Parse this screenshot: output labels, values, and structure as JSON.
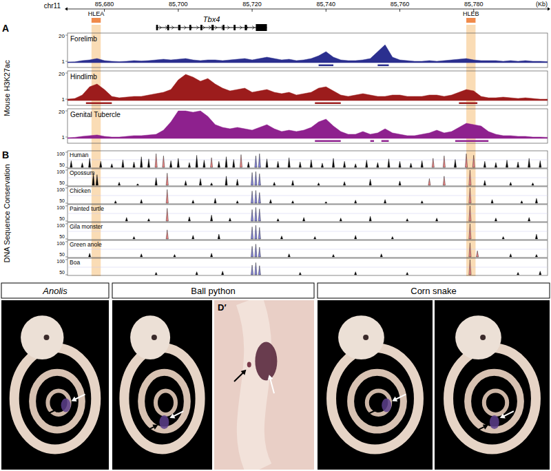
{
  "figure": {
    "ruler": {
      "label": "chr11",
      "unit": "(Kb)",
      "xlim": [
        85670,
        85800
      ],
      "xticks": [
        {
          "value": 85680,
          "label": "85,680"
        },
        {
          "value": 85700,
          "label": "85,700"
        },
        {
          "value": 85720,
          "label": "85,720"
        },
        {
          "value": 85740,
          "label": "85,740"
        },
        {
          "value": 85760,
          "label": "85,760"
        },
        {
          "value": 85780,
          "label": "85,780"
        }
      ]
    },
    "elements": [
      {
        "label": "HLEA",
        "start": 85676.5,
        "end": 85679
      },
      {
        "label": "HLEB",
        "start": 85778,
        "end": 85780.5
      }
    ],
    "gene": {
      "name": "Tbx4",
      "start": 85694,
      "end": 85724,
      "exons": [
        [
          85694,
          85694.5
        ],
        [
          85697,
          85697.5
        ],
        [
          85700,
          85700.6
        ],
        [
          85703,
          85703.5
        ],
        [
          85706,
          85706.5
        ],
        [
          85709,
          85709.6
        ],
        [
          85712,
          85712.5
        ],
        [
          85715,
          85715.5
        ],
        [
          85718,
          85718.6
        ],
        [
          85721,
          85724
        ]
      ]
    },
    "panel_a": {
      "label": "A",
      "title": "Mouse H3K27ac"
    },
    "panel_b": {
      "label": "B",
      "title": "DNA Sequence Conservation"
    },
    "photos": [
      {
        "title": "Anolis",
        "italic": true,
        "panel_labels": [
          null
        ]
      },
      {
        "title": "Ball python",
        "italic": false,
        "panel_labels": [
          null,
          "D′"
        ]
      },
      {
        "title": "Corn snake",
        "italic": false,
        "panel_labels": [
          null,
          null
        ]
      }
    ]
  },
  "chart_data": [
    {
      "type": "area",
      "title": "Forelimb",
      "color": "#2b2f8f",
      "xlim": [
        85670,
        85800
      ],
      "ylim": [
        0,
        20
      ],
      "yticks": [
        1,
        20
      ],
      "x": [
        85670,
        85672,
        85674,
        85676,
        85678,
        85680,
        85682,
        85684,
        85686,
        85688,
        85690,
        85692,
        85694,
        85696,
        85698,
        85700,
        85702,
        85704,
        85706,
        85708,
        85710,
        85712,
        85714,
        85716,
        85718,
        85720,
        85722,
        85724,
        85726,
        85728,
        85730,
        85732,
        85734,
        85736,
        85738,
        85740,
        85742,
        85744,
        85746,
        85748,
        85750,
        85752,
        85754,
        85756,
        85758,
        85760,
        85762,
        85764,
        85766,
        85768,
        85770,
        85772,
        85774,
        85776,
        85778,
        85780,
        85782,
        85784,
        85786,
        85788,
        85790,
        85792,
        85794,
        85796,
        85798,
        85800
      ],
      "values": [
        0.5,
        0.6,
        1.5,
        2,
        3,
        1.5,
        1,
        0.8,
        1,
        1.5,
        1.2,
        1.5,
        2,
        2.5,
        2,
        2.5,
        3,
        2,
        1.5,
        2,
        2,
        1.5,
        2,
        2.5,
        3,
        2,
        3,
        4,
        3,
        2,
        2.5,
        1.5,
        2,
        3,
        5,
        8,
        4,
        2,
        1.5,
        1.5,
        2,
        3,
        8,
        13,
        4,
        2,
        1.5,
        1,
        1,
        1.5,
        1,
        1.5,
        2,
        2.5,
        3,
        2,
        1.5,
        1.5,
        1.5,
        1,
        1.5,
        1,
        1.5,
        1,
        1,
        0.8
      ],
      "peaks": [
        [
          85738,
          85742
        ],
        [
          85754,
          85757
        ]
      ]
    },
    {
      "type": "area",
      "title": "Hindlimb",
      "color": "#9c1c1c",
      "xlim": [
        85670,
        85800
      ],
      "ylim": [
        0,
        20
      ],
      "yticks": [
        1,
        20
      ],
      "x": [
        85670,
        85672,
        85674,
        85676,
        85678,
        85680,
        85682,
        85684,
        85686,
        85688,
        85690,
        85692,
        85694,
        85696,
        85698,
        85700,
        85702,
        85704,
        85706,
        85708,
        85710,
        85712,
        85714,
        85716,
        85718,
        85720,
        85722,
        85724,
        85726,
        85728,
        85730,
        85732,
        85734,
        85736,
        85738,
        85740,
        85742,
        85744,
        85746,
        85748,
        85750,
        85752,
        85754,
        85756,
        85758,
        85760,
        85762,
        85764,
        85766,
        85768,
        85770,
        85772,
        85774,
        85776,
        85778,
        85780,
        85782,
        85784,
        85786,
        85788,
        85790,
        85792,
        85794,
        85796,
        85798,
        85800
      ],
      "values": [
        1,
        1.5,
        4,
        10,
        12,
        8,
        3,
        2,
        2.5,
        3,
        3,
        4,
        5,
        6,
        8,
        15,
        19,
        17,
        14,
        16,
        12,
        9,
        7,
        8,
        9,
        6,
        7,
        8,
        6,
        5,
        6,
        4,
        5,
        6,
        9,
        10,
        7,
        4,
        3,
        4,
        5,
        4,
        3,
        3,
        4,
        4,
        3,
        3,
        3,
        4,
        4,
        3,
        4,
        6,
        8,
        7,
        3,
        2,
        2,
        2.5,
        2,
        1.5,
        2,
        1.5,
        1,
        1
      ],
      "peaks": [
        [
          85675,
          85682
        ],
        [
          85737,
          85744
        ],
        [
          85776,
          85781
        ]
      ]
    },
    {
      "type": "area",
      "title": "Genital Tubercle",
      "color": "#8e218e",
      "xlim": [
        85670,
        85800
      ],
      "ylim": [
        0,
        20
      ],
      "yticks": [
        1,
        20
      ],
      "x": [
        85670,
        85672,
        85674,
        85676,
        85678,
        85680,
        85682,
        85684,
        85686,
        85688,
        85690,
        85692,
        85694,
        85696,
        85698,
        85700,
        85702,
        85704,
        85706,
        85708,
        85710,
        85712,
        85714,
        85716,
        85718,
        85720,
        85722,
        85724,
        85726,
        85728,
        85730,
        85732,
        85734,
        85736,
        85738,
        85740,
        85742,
        85744,
        85746,
        85748,
        85750,
        85752,
        85754,
        85756,
        85758,
        85760,
        85762,
        85764,
        85766,
        85768,
        85770,
        85772,
        85774,
        85776,
        85778,
        85780,
        85782,
        85784,
        85786,
        85788,
        85790,
        85792,
        85794,
        85796,
        85798,
        85800
      ],
      "values": [
        0.5,
        0.8,
        1.5,
        2,
        2.5,
        1.5,
        1,
        1,
        1.5,
        2,
        2,
        2.5,
        3,
        6,
        12,
        20,
        20,
        19,
        20,
        16,
        10,
        8,
        7,
        8,
        7,
        6,
        8,
        10,
        7,
        5,
        6,
        5,
        6,
        8,
        12,
        14,
        9,
        5,
        3,
        3,
        5,
        3,
        4,
        7,
        4,
        3,
        2,
        2,
        3,
        4,
        6,
        4,
        5,
        8,
        11,
        10,
        9,
        5,
        3,
        2,
        2,
        1.5,
        1.5,
        1,
        1,
        0.8
      ],
      "peaks": [
        [
          85737,
          85744
        ],
        [
          85752,
          85753
        ],
        [
          85755,
          85757
        ],
        [
          85775,
          85784
        ]
      ]
    },
    {
      "type": "spike",
      "title": "Human",
      "xlim": [
        85670,
        85800
      ],
      "ylim": [
        50,
        100
      ],
      "yticks": [
        50,
        100
      ],
      "x": [
        85671,
        85674,
        85676,
        85679,
        85682,
        85685,
        85688,
        85690,
        85692,
        85694,
        85696,
        85698,
        85700,
        85703,
        85705,
        85707,
        85709,
        85711,
        85713,
        85715,
        85717,
        85719,
        85721,
        85722,
        85724,
        85727,
        85730,
        85733,
        85736,
        85739,
        85742,
        85745,
        85748,
        85751,
        85754,
        85757,
        85760,
        85763,
        85766,
        85769,
        85772,
        85775,
        85778,
        85780,
        85783,
        85786,
        85789,
        85792,
        85795,
        85798
      ],
      "values": [
        72,
        65,
        80,
        70,
        62,
        75,
        68,
        85,
        78,
        95,
        88,
        72,
        80,
        66,
        90,
        74,
        82,
        70,
        85,
        76,
        92,
        68,
        88,
        95,
        78,
        70,
        82,
        68,
        75,
        64,
        80,
        70,
        62,
        74,
        66,
        78,
        70,
        64,
        72,
        80,
        88,
        76,
        95,
        90,
        70,
        66,
        74,
        68,
        80,
        72
      ],
      "colors": [
        "#000",
        "#000",
        "#000",
        "#000",
        "#000",
        "#000",
        "#000",
        "#000",
        "#000",
        "#e88",
        "#e88",
        "#000",
        "#000",
        "#000",
        "#000",
        "#000",
        "#e88",
        "#000",
        "#000",
        "#000",
        "#e88",
        "#000",
        "#88d",
        "#88d",
        "#000",
        "#000",
        "#000",
        "#000",
        "#000",
        "#000",
        "#000",
        "#000",
        "#000",
        "#000",
        "#000",
        "#000",
        "#000",
        "#000",
        "#000",
        "#e88",
        "#e88",
        "#000",
        "#e88",
        "#e88",
        "#000",
        "#000",
        "#000",
        "#000",
        "#000",
        "#000"
      ]
    },
    {
      "type": "spike",
      "title": "Opossum",
      "xlim": [
        85670,
        85800
      ],
      "ylim": [
        50,
        100
      ],
      "yticks": [
        50,
        100
      ],
      "x": [
        85677,
        85678,
        85684,
        85689,
        85694,
        85697,
        85702,
        85706,
        85709,
        85713,
        85716,
        85720,
        85721,
        85722,
        85726,
        85731,
        85738,
        85745,
        85752,
        85760,
        85768,
        85772,
        85779,
        85783,
        85790,
        85796
      ],
      "values": [
        90,
        85,
        60,
        55,
        75,
        90,
        65,
        72,
        58,
        80,
        70,
        92,
        95,
        88,
        60,
        66,
        58,
        62,
        70,
        64,
        72,
        80,
        100,
        66,
        60,
        58
      ],
      "colors": [
        "#000",
        "#000",
        "#000",
        "#000",
        "#000",
        "#e88",
        "#000",
        "#000",
        "#000",
        "#000",
        "#000",
        "#88d",
        "#88d",
        "#88d",
        "#000",
        "#000",
        "#000",
        "#000",
        "#000",
        "#000",
        "#e88",
        "#e88",
        "#e88",
        "#000",
        "#000",
        "#000"
      ]
    },
    {
      "type": "spike",
      "title": "Chicken",
      "xlim": [
        85670,
        85800
      ],
      "ylim": [
        50,
        100
      ],
      "yticks": [
        50,
        100
      ],
      "x": [
        85683,
        85690,
        85697,
        85704,
        85710,
        85716,
        85720,
        85721,
        85722,
        85725,
        85731,
        85740,
        85748,
        85756,
        85766,
        85779,
        85785,
        85793,
        85797
      ],
      "values": [
        58,
        62,
        95,
        60,
        66,
        58,
        90,
        92,
        85,
        62,
        58,
        55,
        60,
        62,
        58,
        100,
        62,
        58,
        66
      ],
      "colors": [
        "#000",
        "#000",
        "#e88",
        "#000",
        "#000",
        "#000",
        "#88d",
        "#88d",
        "#88d",
        "#000",
        "#000",
        "#000",
        "#000",
        "#000",
        "#000",
        "#e88",
        "#000",
        "#000",
        "#000"
      ]
    },
    {
      "type": "spike",
      "title": "Painted turtle",
      "xlim": [
        85670,
        85800
      ],
      "ylim": [
        50,
        100
      ],
      "yticks": [
        50,
        100
      ],
      "x": [
        85686,
        85692,
        85697,
        85703,
        85709,
        85714,
        85720,
        85721,
        85722,
        85727,
        85734,
        85744,
        85752,
        85762,
        85770,
        85779,
        85786,
        85795
      ],
      "values": [
        62,
        58,
        92,
        64,
        70,
        60,
        88,
        95,
        90,
        58,
        62,
        60,
        66,
        58,
        60,
        100,
        60,
        62
      ],
      "colors": [
        "#000",
        "#000",
        "#e88",
        "#000",
        "#000",
        "#000",
        "#88d",
        "#88d",
        "#88d",
        "#000",
        "#000",
        "#000",
        "#000",
        "#000",
        "#000",
        "#e88",
        "#000",
        "#000"
      ]
    },
    {
      "type": "spike",
      "title": "Gila monster",
      "xlim": [
        85670,
        85800
      ],
      "ylim": [
        50,
        100
      ],
      "yticks": [
        50,
        100
      ],
      "x": [
        85688,
        85697,
        85704,
        85711,
        85720,
        85721,
        85722,
        85728,
        85737,
        85748,
        85758,
        85779,
        85788,
        85797
      ],
      "values": [
        58,
        80,
        62,
        66,
        90,
        95,
        88,
        60,
        58,
        62,
        58,
        100,
        58,
        66
      ],
      "colors": [
        "#000",
        "#e88",
        "#000",
        "#000",
        "#88d",
        "#88d",
        "#88d",
        "#000",
        "#000",
        "#000",
        "#000",
        "#e88",
        "#000",
        "#000"
      ]
    },
    {
      "type": "spike",
      "title": "Green anole",
      "xlim": [
        85670,
        85800
      ],
      "ylim": [
        50,
        100
      ],
      "yticks": [
        50,
        100
      ],
      "x": [
        85676,
        85690,
        85699,
        85709,
        85720,
        85721,
        85722,
        85730,
        85742,
        85755,
        85779,
        85781,
        85790,
        85797
      ],
      "values": [
        62,
        60,
        58,
        62,
        85,
        92,
        82,
        60,
        58,
        60,
        96,
        70,
        60,
        58
      ],
      "colors": [
        "#000",
        "#000",
        "#000",
        "#000",
        "#88d",
        "#88d",
        "#88d",
        "#000",
        "#000",
        "#000",
        "#e88",
        "#e88",
        "#000",
        "#000"
      ]
    },
    {
      "type": "spike",
      "title": "Boa",
      "xlim": [
        85670,
        85800
      ],
      "ylim": [
        50,
        100
      ],
      "yticks": [
        50,
        100
      ],
      "x": [
        85694,
        85705,
        85712,
        85720,
        85721,
        85722,
        85733,
        85748,
        85762,
        85779,
        85792,
        85798
      ],
      "values": [
        58,
        60,
        62,
        82,
        90,
        80,
        58,
        60,
        58,
        100,
        58,
        62
      ],
      "colors": [
        "#000",
        "#000",
        "#000",
        "#88d",
        "#88d",
        "#88d",
        "#000",
        "#000",
        "#000",
        "#e88",
        "#000",
        "#000"
      ]
    }
  ]
}
